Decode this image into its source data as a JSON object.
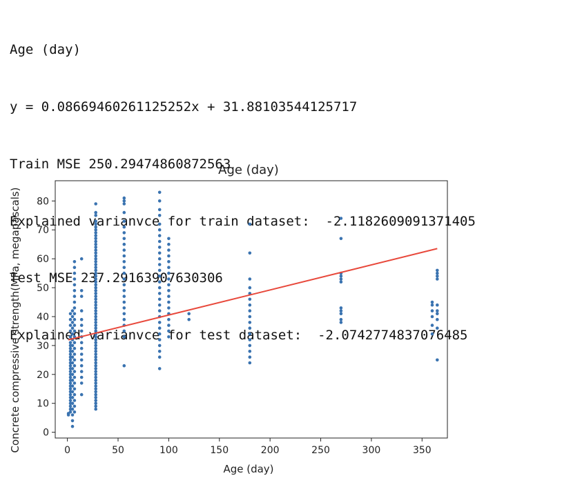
{
  "output_lines": [
    "Age (day)",
    "y = 0.08669460261125252x + 31.88103544125717",
    "Train MSE 250.29474860872563",
    "Explained varianvce for train dataset:  -2.1182609091371405",
    "Test MSE 237.29163907630306",
    "Explained varianvce for test dataset:  -2.0742774837076485"
  ],
  "chart_data": {
    "type": "scatter",
    "title": "Age (day)",
    "xlabel": "Age (day)",
    "ylabel": "Concrete compressive strength(MPa, megapascals)",
    "xlim": [
      -12,
      375
    ],
    "ylim": [
      -2,
      87
    ],
    "xticks": [
      0,
      50,
      100,
      150,
      200,
      250,
      300,
      350
    ],
    "yticks": [
      0,
      10,
      20,
      30,
      40,
      50,
      60,
      70,
      80
    ],
    "grid": false,
    "marker_color": "#3a73b0",
    "line_color": "#e8483b",
    "regression": {
      "slope": 0.08669460261125252,
      "intercept": 31.88103544125717,
      "x_range": [
        1,
        365
      ]
    },
    "points": [
      [
        1,
        6.0
      ],
      [
        1,
        6.5
      ],
      [
        3,
        7
      ],
      [
        3,
        8
      ],
      [
        3,
        9
      ],
      [
        3,
        10
      ],
      [
        3,
        11
      ],
      [
        3,
        12
      ],
      [
        3,
        13
      ],
      [
        3,
        14
      ],
      [
        3,
        15
      ],
      [
        3,
        16
      ],
      [
        3,
        17
      ],
      [
        3,
        18
      ],
      [
        3,
        19
      ],
      [
        3,
        20
      ],
      [
        3,
        21
      ],
      [
        3,
        22
      ],
      [
        3,
        23
      ],
      [
        3,
        24
      ],
      [
        3,
        25
      ],
      [
        3,
        26
      ],
      [
        3,
        27
      ],
      [
        3,
        28
      ],
      [
        3,
        29
      ],
      [
        3,
        30
      ],
      [
        3,
        31
      ],
      [
        3,
        33
      ],
      [
        3,
        35
      ],
      [
        3,
        37
      ],
      [
        3,
        39
      ],
      [
        3,
        41
      ],
      [
        5,
        2
      ],
      [
        5,
        4
      ],
      [
        5,
        6
      ],
      [
        5,
        8
      ],
      [
        5,
        10
      ],
      [
        5,
        12
      ],
      [
        5,
        14
      ],
      [
        5,
        16
      ],
      [
        5,
        18
      ],
      [
        5,
        20
      ],
      [
        5,
        22
      ],
      [
        5,
        24
      ],
      [
        5,
        26
      ],
      [
        5,
        28
      ],
      [
        5,
        30
      ],
      [
        5,
        32
      ],
      [
        5,
        34
      ],
      [
        5,
        36
      ],
      [
        5,
        38
      ],
      [
        5,
        40
      ],
      [
        5,
        42
      ],
      [
        7,
        7
      ],
      [
        7,
        9
      ],
      [
        7,
        11
      ],
      [
        7,
        13
      ],
      [
        7,
        15
      ],
      [
        7,
        17
      ],
      [
        7,
        19
      ],
      [
        7,
        21
      ],
      [
        7,
        23
      ],
      [
        7,
        25
      ],
      [
        7,
        27
      ],
      [
        7,
        29
      ],
      [
        7,
        31
      ],
      [
        7,
        33
      ],
      [
        7,
        35
      ],
      [
        7,
        37
      ],
      [
        7,
        39
      ],
      [
        7,
        41
      ],
      [
        7,
        43
      ],
      [
        7,
        45
      ],
      [
        7,
        47
      ],
      [
        7,
        49
      ],
      [
        7,
        51
      ],
      [
        7,
        53
      ],
      [
        7,
        55
      ],
      [
        7,
        57
      ],
      [
        7,
        59
      ],
      [
        14,
        13
      ],
      [
        14,
        17
      ],
      [
        14,
        19
      ],
      [
        14,
        21
      ],
      [
        14,
        23
      ],
      [
        14,
        25
      ],
      [
        14,
        27
      ],
      [
        14,
        29
      ],
      [
        14,
        31
      ],
      [
        14,
        33
      ],
      [
        14,
        35
      ],
      [
        14,
        37
      ],
      [
        14,
        39
      ],
      [
        14,
        42
      ],
      [
        14,
        47
      ],
      [
        14,
        49
      ],
      [
        14,
        60
      ],
      [
        28,
        8
      ],
      [
        28,
        9
      ],
      [
        28,
        10
      ],
      [
        28,
        11
      ],
      [
        28,
        12
      ],
      [
        28,
        13
      ],
      [
        28,
        14
      ],
      [
        28,
        15
      ],
      [
        28,
        16
      ],
      [
        28,
        17
      ],
      [
        28,
        18
      ],
      [
        28,
        19
      ],
      [
        28,
        20
      ],
      [
        28,
        21
      ],
      [
        28,
        22
      ],
      [
        28,
        23
      ],
      [
        28,
        24
      ],
      [
        28,
        25
      ],
      [
        28,
        26
      ],
      [
        28,
        27
      ],
      [
        28,
        28
      ],
      [
        28,
        29
      ],
      [
        28,
        30
      ],
      [
        28,
        31
      ],
      [
        28,
        32
      ],
      [
        28,
        33
      ],
      [
        28,
        34
      ],
      [
        28,
        35
      ],
      [
        28,
        36
      ],
      [
        28,
        37
      ],
      [
        28,
        38
      ],
      [
        28,
        39
      ],
      [
        28,
        40
      ],
      [
        28,
        41
      ],
      [
        28,
        42
      ],
      [
        28,
        43
      ],
      [
        28,
        44
      ],
      [
        28,
        45
      ],
      [
        28,
        46
      ],
      [
        28,
        47
      ],
      [
        28,
        48
      ],
      [
        28,
        49
      ],
      [
        28,
        50
      ],
      [
        28,
        51
      ],
      [
        28,
        52
      ],
      [
        28,
        53
      ],
      [
        28,
        54
      ],
      [
        28,
        55
      ],
      [
        28,
        56
      ],
      [
        28,
        57
      ],
      [
        28,
        58
      ],
      [
        28,
        59
      ],
      [
        28,
        60
      ],
      [
        28,
        61
      ],
      [
        28,
        62
      ],
      [
        28,
        63
      ],
      [
        28,
        64
      ],
      [
        28,
        65
      ],
      [
        28,
        66
      ],
      [
        28,
        67
      ],
      [
        28,
        68
      ],
      [
        28,
        69
      ],
      [
        28,
        70
      ],
      [
        28,
        71
      ],
      [
        28,
        72
      ],
      [
        28,
        73
      ],
      [
        28,
        75
      ],
      [
        28,
        76
      ],
      [
        28,
        79
      ],
      [
        56,
        23
      ],
      [
        56,
        33
      ],
      [
        56,
        35
      ],
      [
        56,
        37
      ],
      [
        56,
        39
      ],
      [
        56,
        41
      ],
      [
        56,
        43
      ],
      [
        56,
        45
      ],
      [
        56,
        47
      ],
      [
        56,
        49
      ],
      [
        56,
        51
      ],
      [
        56,
        53
      ],
      [
        56,
        55
      ],
      [
        56,
        57
      ],
      [
        56,
        59
      ],
      [
        56,
        61
      ],
      [
        56,
        63
      ],
      [
        56,
        65
      ],
      [
        56,
        67
      ],
      [
        56,
        69
      ],
      [
        56,
        71
      ],
      [
        56,
        73
      ],
      [
        56,
        76
      ],
      [
        56,
        79
      ],
      [
        56,
        80
      ],
      [
        56,
        81
      ],
      [
        91,
        22
      ],
      [
        91,
        26
      ],
      [
        91,
        28
      ],
      [
        91,
        30
      ],
      [
        91,
        32
      ],
      [
        91,
        34
      ],
      [
        91,
        36
      ],
      [
        91,
        38
      ],
      [
        91,
        40
      ],
      [
        91,
        42
      ],
      [
        91,
        44
      ],
      [
        91,
        46
      ],
      [
        91,
        48
      ],
      [
        91,
        50
      ],
      [
        91,
        52
      ],
      [
        91,
        54
      ],
      [
        91,
        56
      ],
      [
        91,
        58
      ],
      [
        91,
        60
      ],
      [
        91,
        62
      ],
      [
        91,
        64
      ],
      [
        91,
        66
      ],
      [
        91,
        68
      ],
      [
        91,
        70
      ],
      [
        91,
        72
      ],
      [
        91,
        75
      ],
      [
        91,
        77
      ],
      [
        91,
        80
      ],
      [
        91,
        83
      ],
      [
        100,
        33
      ],
      [
        100,
        35
      ],
      [
        100,
        37
      ],
      [
        100,
        39
      ],
      [
        100,
        41
      ],
      [
        100,
        43
      ],
      [
        100,
        45
      ],
      [
        100,
        47
      ],
      [
        100,
        49
      ],
      [
        100,
        51
      ],
      [
        100,
        53
      ],
      [
        100,
        55
      ],
      [
        100,
        57
      ],
      [
        100,
        59
      ],
      [
        100,
        61
      ],
      [
        100,
        63
      ],
      [
        100,
        65
      ],
      [
        100,
        67
      ],
      [
        120,
        39
      ],
      [
        120,
        41
      ],
      [
        180,
        24
      ],
      [
        180,
        26
      ],
      [
        180,
        28
      ],
      [
        180,
        30
      ],
      [
        180,
        32
      ],
      [
        180,
        34
      ],
      [
        180,
        36
      ],
      [
        180,
        38
      ],
      [
        180,
        40
      ],
      [
        180,
        42
      ],
      [
        180,
        44
      ],
      [
        180,
        46
      ],
      [
        180,
        48
      ],
      [
        180,
        50
      ],
      [
        180,
        53
      ],
      [
        180,
        62
      ],
      [
        180,
        72
      ],
      [
        270,
        38
      ],
      [
        270,
        39
      ],
      [
        270,
        41
      ],
      [
        270,
        42
      ],
      [
        270,
        43
      ],
      [
        270,
        52
      ],
      [
        270,
        53
      ],
      [
        270,
        54
      ],
      [
        270,
        55
      ],
      [
        270,
        67
      ],
      [
        270,
        74
      ],
      [
        360,
        34
      ],
      [
        360,
        37
      ],
      [
        360,
        40
      ],
      [
        360,
        42
      ],
      [
        360,
        44
      ],
      [
        360,
        45
      ],
      [
        365,
        25
      ],
      [
        365,
        36
      ],
      [
        365,
        39
      ],
      [
        365,
        41
      ],
      [
        365,
        42
      ],
      [
        365,
        44
      ],
      [
        365,
        53
      ],
      [
        365,
        54
      ],
      [
        365,
        55
      ],
      [
        365,
        56
      ]
    ]
  }
}
